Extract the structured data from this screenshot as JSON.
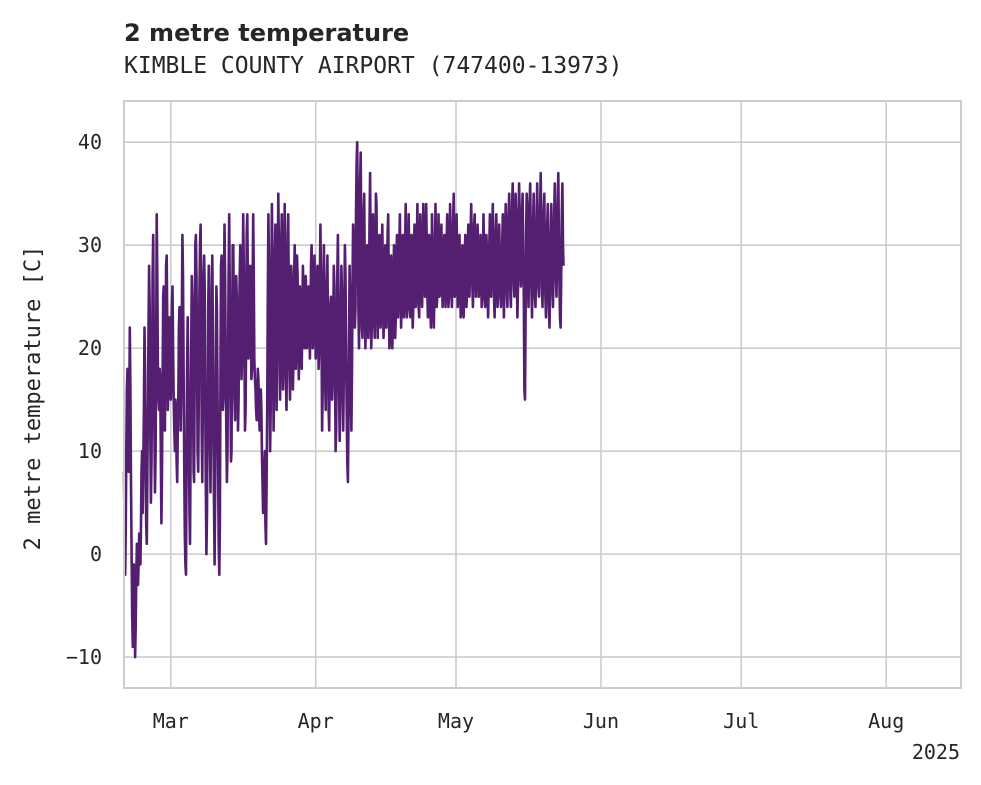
{
  "chart_data": {
    "type": "line",
    "title": "2 metre temperature",
    "subtitle": "KIMBLE COUNTY AIRPORT (747400-13973)",
    "ylabel": "2 metre temperature [C]",
    "xlabel": "",
    "x_year_label": "2025",
    "ylim": [
      -13,
      44
    ],
    "xlim": [
      "2025-02-19",
      "2025-08-17"
    ],
    "grid": true,
    "legend": "none",
    "y_ticks": [
      {
        "value": -10,
        "label": "−10"
      },
      {
        "value": 0,
        "label": "0"
      },
      {
        "value": 10,
        "label": "10"
      },
      {
        "value": 20,
        "label": "20"
      },
      {
        "value": 30,
        "label": "30"
      },
      {
        "value": 40,
        "label": "40"
      }
    ],
    "x_ticks": [
      {
        "value": "2025-03-01",
        "label": "Mar"
      },
      {
        "value": "2025-04-01",
        "label": "Apr"
      },
      {
        "value": "2025-05-01",
        "label": "May"
      },
      {
        "value": "2025-06-01",
        "label": "Jun"
      },
      {
        "value": "2025-07-01",
        "label": "Jul"
      },
      {
        "value": "2025-08-01",
        "label": "Aug"
      }
    ],
    "series": [
      {
        "color": "#541f71",
        "sampling": "3-hourly",
        "start": "2025-02-19T00:00",
        "values": [
          8,
          2,
          -2,
          3,
          10,
          16,
          18,
          12,
          8,
          14,
          22,
          16,
          7,
          0,
          -6,
          -9,
          -6,
          -1,
          -3,
          -10,
          -7,
          -2,
          1,
          -1,
          -3,
          -1,
          2,
          1,
          -1,
          3,
          8,
          10,
          4,
          9,
          14,
          22,
          18,
          9,
          3,
          1,
          8,
          15,
          22,
          28,
          24,
          12,
          5,
          9,
          17,
          27,
          31,
          21,
          12,
          6,
          10,
          18,
          33,
          27,
          18,
          15,
          14,
          18,
          17,
          10,
          3,
          8,
          17,
          25,
          26,
          18,
          12,
          20,
          28,
          29,
          22,
          14,
          16,
          22,
          23,
          19,
          15,
          17,
          24,
          26,
          20,
          15,
          12,
          10,
          15,
          14,
          9,
          7,
          12,
          16,
          22,
          24,
          18,
          12,
          16,
          24,
          31,
          27,
          18,
          9,
          2,
          -1,
          -2,
          8,
          18,
          23,
          17,
          10,
          4,
          1,
          10,
          20,
          27,
          25,
          16,
          8,
          7,
          18,
          30,
          31,
          27,
          18,
          10,
          8,
          15,
          25,
          30,
          32,
          24,
          12,
          7,
          16,
          27,
          29,
          26,
          15,
          7,
          0,
          4,
          14,
          24,
          28,
          21,
          11,
          6,
          14,
          26,
          29,
          23,
          12,
          5,
          -1,
          6,
          18,
          26,
          24,
          16,
          9,
          1,
          -2,
          3,
          16,
          28,
          29,
          20,
          14,
          15,
          24,
          32,
          27,
          19,
          12,
          7,
          10,
          18,
          27,
          33,
          25,
          16,
          9,
          10,
          20,
          30,
          30,
          22,
          15,
          13,
          21,
          27,
          25,
          18,
          12,
          15,
          22,
          27,
          30,
          22,
          17,
          19,
          27,
          33,
          28,
          20,
          12,
          14,
          22,
          31,
          33,
          26,
          19,
          21,
          27,
          28,
          24,
          17,
          18,
          26,
          33,
          27,
          19,
          17,
          16,
          14,
          13,
          15,
          18,
          17,
          14,
          12,
          14,
          16,
          14,
          10,
          7,
          4,
          6,
          8,
          10,
          3,
          1,
          7,
          14,
          25,
          33,
          28,
          18,
          10,
          14,
          25,
          34,
          29,
          20,
          12,
          18,
          28,
          32,
          24,
          14,
          18,
          27,
          35,
          30,
          22,
          15,
          20,
          30,
          33,
          25,
          16,
          19,
          29,
          34,
          26,
          17,
          14,
          22,
          31,
          33,
          25,
          18,
          15,
          20,
          28,
          26,
          20,
          16,
          19,
          27,
          30,
          24,
          18,
          21,
          29,
          27,
          21,
          17,
          20,
          26,
          25,
          20,
          18,
          22,
          28,
          26,
          22,
          20,
          23,
          27,
          24,
          20,
          21,
          25,
          26,
          22,
          19,
          23,
          28,
          30,
          25,
          20,
          22,
          27,
          29,
          24,
          19,
          21,
          26,
          28,
          23,
          18,
          20,
          26,
          32,
          27,
          20,
          12,
          16,
          25,
          30,
          24,
          17,
          14,
          20,
          26,
          29,
          22,
          14,
          12,
          18,
          24,
          25,
          19,
          15,
          17,
          23,
          28,
          26,
          18,
          10,
          12,
          20,
          27,
          31,
          24,
          16,
          11,
          15,
          23,
          28,
          25,
          18,
          12,
          17,
          25,
          30,
          27,
          20,
          14,
          9,
          7,
          12,
          20,
          28,
          24,
          16,
          12,
          18,
          26,
          32,
          30,
          26,
          22,
          24,
          33,
          38,
          40,
          33,
          24,
          20,
          26,
          36,
          39,
          30,
          22,
          21,
          27,
          33,
          35,
          27,
          20,
          23,
          29,
          30,
          26,
          21,
          24,
          32,
          37,
          28,
          20,
          22,
          29,
          33,
          29,
          23,
          21,
          26,
          35,
          34,
          25,
          21,
          24,
          29,
          31,
          26,
          22,
          25,
          30,
          32,
          27,
          21,
          23,
          28,
          30,
          26,
          22,
          25,
          31,
          33,
          26,
          20,
          21,
          28,
          29,
          24,
          20,
          22,
          27,
          30,
          26,
          21,
          23,
          29,
          31,
          27,
          23,
          25,
          30,
          33,
          27,
          22,
          24,
          29,
          31,
          27,
          23,
          25,
          30,
          34,
          28,
          23,
          24,
          29,
          33,
          29,
          24,
          23,
          27,
          31,
          27,
          22,
          24,
          29,
          32,
          28,
          24,
          25,
          30,
          34,
          29,
          24,
          23,
          28,
          33,
          30,
          26,
          24,
          28,
          34,
          31,
          27,
          25,
          29,
          34,
          30,
          25,
          23,
          26,
          31,
          29,
          24,
          22,
          26,
          33,
          30,
          24,
          22,
          25,
          30,
          34,
          28,
          24,
          25,
          29,
          33,
          29,
          25,
          26,
          30,
          32,
          27,
          24,
          26,
          29,
          31,
          27,
          24,
          26,
          30,
          33,
          28,
          24,
          25,
          30,
          34,
          31,
          26,
          24,
          27,
          32,
          35,
          29,
          25,
          26,
          30,
          33,
          28,
          24,
          25,
          29,
          31,
          27,
          23,
          24,
          28,
          30,
          26,
          23,
          25,
          29,
          31,
          27,
          24,
          26,
          30,
          32,
          28,
          25,
          27,
          31,
          34,
          30,
          26,
          24,
          28,
          32,
          33,
          28,
          25,
          27,
          30,
          32,
          28,
          25,
          26,
          29,
          31,
          27,
          24,
          25,
          29,
          33,
          29,
          25,
          24,
          27,
          31,
          29,
          25,
          23,
          26,
          30,
          33,
          28,
          25,
          27,
          31,
          34,
          30,
          25,
          23,
          27,
          31,
          33,
          28,
          24,
          25,
          29,
          32,
          29,
          26,
          24,
          27,
          30,
          33,
          28,
          23,
          26,
          31,
          34,
          31,
          26,
          24,
          28,
          33,
          35,
          30,
          25,
          24,
          29,
          34,
          36,
          31,
          26,
          25,
          30,
          35,
          33,
          27,
          23,
          26,
          32,
          36,
          33,
          28,
          26,
          29,
          33,
          35,
          30,
          25,
          16,
          15,
          22,
          31,
          35,
          33,
          27,
          24,
          28,
          34,
          36,
          31,
          26,
          23,
          27,
          32,
          35,
          30,
          25,
          24,
          28,
          33,
          36,
          31,
          26,
          25,
          29,
          34,
          37,
          32,
          26,
          24,
          28,
          33,
          35,
          30,
          25,
          23,
          27,
          32,
          34,
          29,
          24,
          22,
          26,
          31,
          34,
          30,
          26,
          24,
          28,
          33,
          36,
          31,
          27,
          25,
          29,
          34,
          37,
          31,
          26,
          23,
          22,
          27,
          33,
          36,
          30,
          28
        ]
      }
    ]
  }
}
